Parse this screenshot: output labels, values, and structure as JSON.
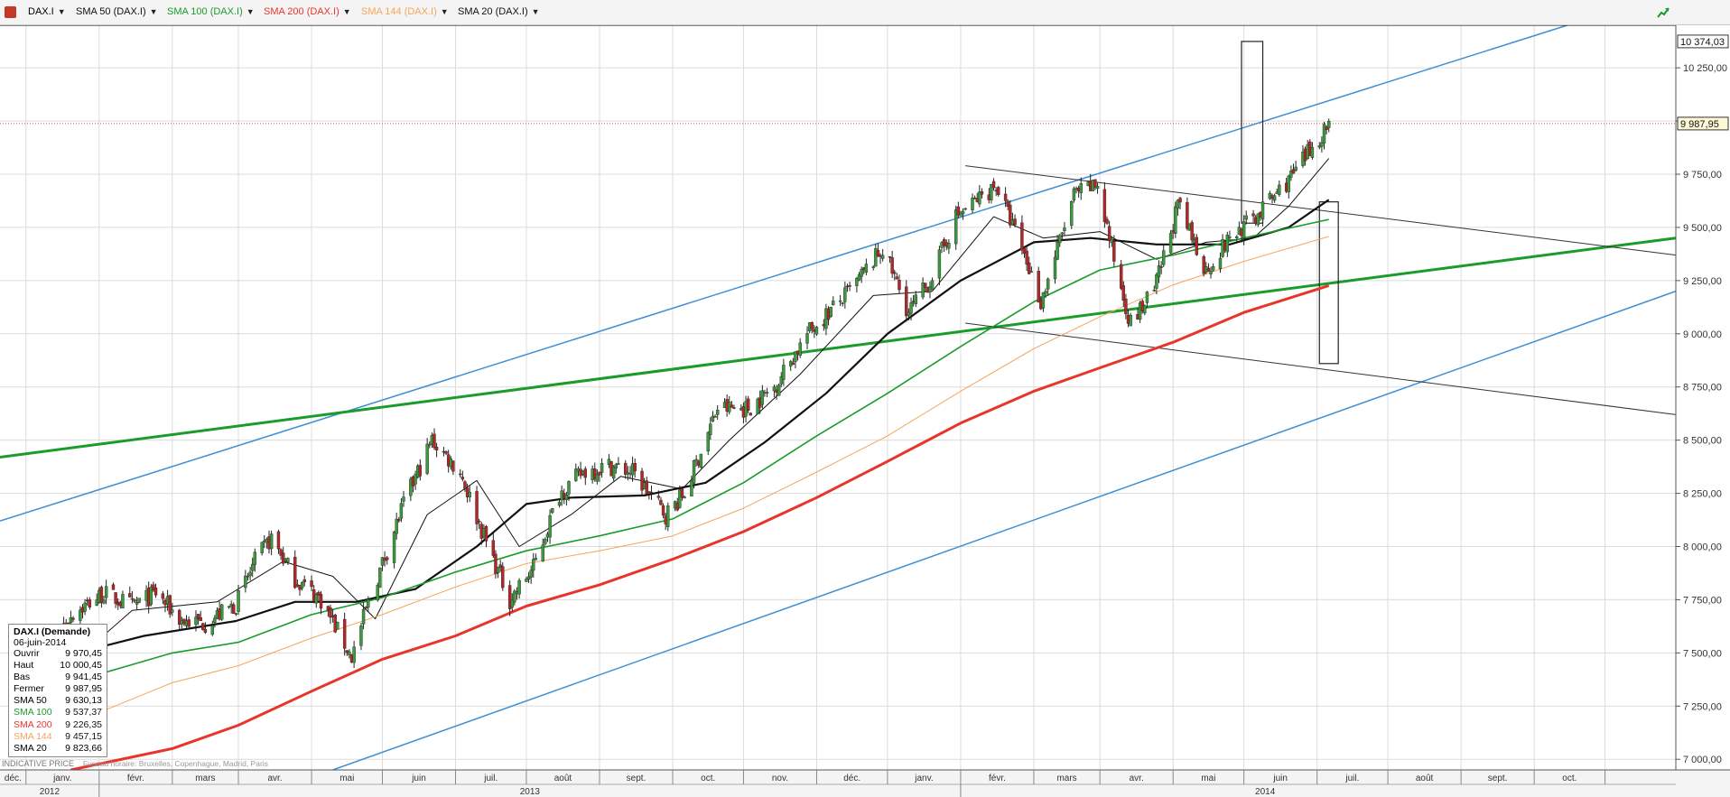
{
  "toolbar": {
    "instrument": "DAX.I",
    "overlays": [
      {
        "label": "SMA 50 (DAX.I)",
        "color": "#111111"
      },
      {
        "label": "SMA 100 (DAX.I)",
        "color": "#1a9b2a"
      },
      {
        "label": "SMA 200 (DAX.I)",
        "color": "#e8352b"
      },
      {
        "label": "SMA 144 (DAX.I)",
        "color": "#f5a55a"
      },
      {
        "label": "SMA 20 (DAX.I)",
        "color": "#111111"
      }
    ]
  },
  "info_box": {
    "title": "DAX.I (Demande)",
    "date": "06-juin-2014",
    "rows": [
      {
        "label": "Ouvrir",
        "value": "9 970,45",
        "color": "#111111"
      },
      {
        "label": "Haut",
        "value": "10 000,45",
        "color": "#111111"
      },
      {
        "label": "Bas",
        "value": "9 941,45",
        "color": "#111111"
      },
      {
        "label": "Fermer",
        "value": "9 987,95",
        "color": "#111111"
      },
      {
        "label": "SMA 50",
        "value": "9 630,13",
        "color": "#111111"
      },
      {
        "label": "SMA 100",
        "value": "9 537,37",
        "color": "#1a9b2a"
      },
      {
        "label": "SMA 200",
        "value": "9 226,35",
        "color": "#e8352b"
      },
      {
        "label": "SMA 144",
        "value": "9 457,15",
        "color": "#f5a55a"
      },
      {
        "label": "SMA 20",
        "value": "9 823,66",
        "color": "#111111"
      }
    ]
  },
  "footnote": {
    "price_type": "INDICATIVE PRICE",
    "timezone": "Fuseau horaire: Bruxelles, Copenhague, Madrid, Paris"
  },
  "chart_data": {
    "type": "candlestick",
    "ylim": [
      6950,
      10450
    ],
    "y_ticks": [
      7000,
      7250,
      7500,
      7750,
      8000,
      8250,
      8500,
      8750,
      9000,
      9250,
      9500,
      9750,
      10000,
      10250
    ],
    "y_tick_labels": [
      "7 000,00",
      "7 250,00",
      "7 500,00",
      "7 750,00",
      "8 000,00",
      "8 250,00",
      "8 500,00",
      "8 750,00",
      "9 000,00",
      "9 250,00",
      "9 500,00",
      "9 750,00",
      "10 000,00",
      "10 250,00"
    ],
    "x_months": [
      "déc.",
      "janv.",
      "févr.",
      "mars",
      "avr.",
      "mai",
      "juin",
      "juil.",
      "août",
      "sept.",
      "oct.",
      "nov.",
      "déc.",
      "janv.",
      "févr.",
      "mars",
      "avr.",
      "mai",
      "juin",
      "juil.",
      "août",
      "sept.",
      "oct."
    ],
    "x_years": [
      "2012",
      "2013",
      "2014"
    ],
    "x_range": [
      "2012-11-20",
      "2014-10-31"
    ],
    "last_price_label": "9 987,95",
    "last_price": 9987.95,
    "max_marker_label": "10 374,03",
    "max_marker": 10374.03,
    "price_path": [
      [
        "2012-12-03",
        7420
      ],
      [
        "2012-12-20",
        7680
      ],
      [
        "2013-01-03",
        7780
      ],
      [
        "2013-01-15",
        7720
      ],
      [
        "2013-01-25",
        7780
      ],
      [
        "2013-02-05",
        7650
      ],
      [
        "2013-02-15",
        7640
      ],
      [
        "2013-02-28",
        7730
      ],
      [
        "2013-03-08",
        7930
      ],
      [
        "2013-03-15",
        8040
      ],
      [
        "2013-03-25",
        7850
      ],
      [
        "2013-04-05",
        7750
      ],
      [
        "2013-04-18",
        7480
      ],
      [
        "2013-04-24",
        7700
      ],
      [
        "2013-05-02",
        7950
      ],
      [
        "2013-05-10",
        8200
      ],
      [
        "2013-05-22",
        8500
      ],
      [
        "2013-06-03",
        8350
      ],
      [
        "2013-06-13",
        8050
      ],
      [
        "2013-06-24",
        7750
      ],
      [
        "2013-07-04",
        7900
      ],
      [
        "2013-07-15",
        8250
      ],
      [
        "2013-07-25",
        8350
      ],
      [
        "2013-08-05",
        8380
      ],
      [
        "2013-08-15",
        8350
      ],
      [
        "2013-08-29",
        8150
      ],
      [
        "2013-09-06",
        8250
      ],
      [
        "2013-09-20",
        8650
      ],
      [
        "2013-10-03",
        8650
      ],
      [
        "2013-10-14",
        8750
      ],
      [
        "2013-10-28",
        9000
      ],
      [
        "2013-11-15",
        9200
      ],
      [
        "2013-11-29",
        9400
      ],
      [
        "2013-12-10",
        9100
      ],
      [
        "2013-12-19",
        9250
      ],
      [
        "2013-12-30",
        9550
      ],
      [
        "2014-01-16",
        9700
      ],
      [
        "2014-01-27",
        9400
      ],
      [
        "2014-02-04",
        9150
      ],
      [
        "2014-02-18",
        9650
      ],
      [
        "2014-02-28",
        9700
      ],
      [
        "2014-03-07",
        9350
      ],
      [
        "2014-03-14",
        9050
      ],
      [
        "2014-03-24",
        9200
      ],
      [
        "2014-04-03",
        9600
      ],
      [
        "2014-04-15",
        9300
      ],
      [
        "2014-04-25",
        9450
      ],
      [
        "2014-05-06",
        9550
      ],
      [
        "2014-05-14",
        9650
      ],
      [
        "2014-05-22",
        9750
      ],
      [
        "2014-06-06",
        9987.95
      ]
    ],
    "series": [
      {
        "name": "SMA 20",
        "color": "#111111",
        "width": 1,
        "values": [
          [
            "2012-12-05",
            7300
          ],
          [
            "2013-01-15",
            7700
          ],
          [
            "2013-02-20",
            7740
          ],
          [
            "2013-03-20",
            7930
          ],
          [
            "2013-04-10",
            7860
          ],
          [
            "2013-04-28",
            7660
          ],
          [
            "2013-05-20",
            8150
          ],
          [
            "2013-06-10",
            8310
          ],
          [
            "2013-06-28",
            8000
          ],
          [
            "2013-07-20",
            8150
          ],
          [
            "2013-08-10",
            8330
          ],
          [
            "2013-09-05",
            8270
          ],
          [
            "2013-09-25",
            8500
          ],
          [
            "2013-10-25",
            8810
          ],
          [
            "2013-11-25",
            9180
          ],
          [
            "2013-12-20",
            9200
          ],
          [
            "2014-01-15",
            9550
          ],
          [
            "2014-02-05",
            9450
          ],
          [
            "2014-03-01",
            9480
          ],
          [
            "2014-03-25",
            9350
          ],
          [
            "2014-04-15",
            9430
          ],
          [
            "2014-05-05",
            9450
          ],
          [
            "2014-05-20",
            9600
          ],
          [
            "2014-06-06",
            9823.66
          ]
        ]
      },
      {
        "name": "SMA 50",
        "color": "#111111",
        "width": 2.2,
        "values": [
          [
            "2012-12-05",
            7450
          ],
          [
            "2013-01-20",
            7580
          ],
          [
            "2013-02-28",
            7650
          ],
          [
            "2013-03-25",
            7740
          ],
          [
            "2013-04-20",
            7740
          ],
          [
            "2013-05-15",
            7800
          ],
          [
            "2013-06-10",
            8000
          ],
          [
            "2013-07-01",
            8200
          ],
          [
            "2013-07-20",
            8230
          ],
          [
            "2013-08-20",
            8240
          ],
          [
            "2013-09-15",
            8300
          ],
          [
            "2013-10-10",
            8490
          ],
          [
            "2013-11-05",
            8720
          ],
          [
            "2013-12-01",
            9000
          ],
          [
            "2014-01-01",
            9250
          ],
          [
            "2014-02-01",
            9430
          ],
          [
            "2014-02-25",
            9450
          ],
          [
            "2014-03-25",
            9420
          ],
          [
            "2014-04-25",
            9420
          ],
          [
            "2014-05-20",
            9500
          ],
          [
            "2014-06-06",
            9630.13
          ]
        ]
      },
      {
        "name": "SMA 100",
        "color": "#1a9b2a",
        "width": 1.6,
        "values": [
          [
            "2012-12-05",
            7260
          ],
          [
            "2013-01-01",
            7400
          ],
          [
            "2013-02-01",
            7500
          ],
          [
            "2013-03-01",
            7550
          ],
          [
            "2013-04-01",
            7680
          ],
          [
            "2013-05-01",
            7760
          ],
          [
            "2013-06-01",
            7880
          ],
          [
            "2013-07-01",
            7980
          ],
          [
            "2013-08-01",
            8050
          ],
          [
            "2013-09-01",
            8130
          ],
          [
            "2013-10-01",
            8300
          ],
          [
            "2013-11-01",
            8520
          ],
          [
            "2013-12-01",
            8720
          ],
          [
            "2014-01-01",
            8940
          ],
          [
            "2014-02-01",
            9150
          ],
          [
            "2014-03-01",
            9300
          ],
          [
            "2014-04-01",
            9370
          ],
          [
            "2014-05-01",
            9450
          ],
          [
            "2014-06-06",
            9537.37
          ]
        ]
      },
      {
        "name": "SMA 144",
        "color": "#f5a55a",
        "width": 1,
        "values": [
          [
            "2012-12-05",
            7050
          ],
          [
            "2013-01-01",
            7220
          ],
          [
            "2013-02-01",
            7360
          ],
          [
            "2013-03-01",
            7440
          ],
          [
            "2013-04-01",
            7570
          ],
          [
            "2013-05-01",
            7680
          ],
          [
            "2013-06-01",
            7810
          ],
          [
            "2013-07-01",
            7920
          ],
          [
            "2013-08-01",
            7980
          ],
          [
            "2013-09-01",
            8050
          ],
          [
            "2013-10-01",
            8180
          ],
          [
            "2013-11-01",
            8350
          ],
          [
            "2013-12-01",
            8520
          ],
          [
            "2014-01-01",
            8730
          ],
          [
            "2014-02-01",
            8930
          ],
          [
            "2014-03-01",
            9080
          ],
          [
            "2014-04-01",
            9230
          ],
          [
            "2014-05-01",
            9340
          ],
          [
            "2014-06-06",
            9457.15
          ]
        ]
      },
      {
        "name": "SMA 200",
        "color": "#e8352b",
        "width": 3,
        "values": [
          [
            "2012-12-20",
            6950
          ],
          [
            "2013-02-01",
            7050
          ],
          [
            "2013-03-01",
            7160
          ],
          [
            "2013-04-01",
            7320
          ],
          [
            "2013-05-01",
            7470
          ],
          [
            "2013-06-01",
            7580
          ],
          [
            "2013-07-01",
            7720
          ],
          [
            "2013-08-01",
            7820
          ],
          [
            "2013-09-01",
            7940
          ],
          [
            "2013-10-01",
            8070
          ],
          [
            "2013-11-01",
            8230
          ],
          [
            "2013-12-01",
            8400
          ],
          [
            "2014-01-01",
            8580
          ],
          [
            "2014-02-01",
            8730
          ],
          [
            "2014-03-01",
            8840
          ],
          [
            "2014-04-01",
            8960
          ],
          [
            "2014-05-01",
            9100
          ],
          [
            "2014-06-06",
            9226.35
          ]
        ]
      }
    ],
    "trendlines": [
      {
        "name": "upper-channel",
        "color": "#3d8fd6",
        "width": 1.5,
        "from": [
          "2012-11-20",
          8120
        ],
        "to": [
          "2014-09-15",
          10450
        ]
      },
      {
        "name": "lower-channel",
        "color": "#3d8fd6",
        "width": 1.5,
        "from": [
          "2013-04-10",
          6950
        ],
        "to": [
          "2014-10-31",
          9200
        ]
      },
      {
        "name": "green-support",
        "color": "#1a9b2a",
        "width": 3,
        "from": [
          "2012-11-20",
          8420
        ],
        "to": [
          "2014-10-31",
          9450
        ]
      },
      {
        "name": "wedge-upper",
        "color": "#333333",
        "width": 1,
        "from": [
          "2014-01-03",
          9790
        ],
        "to": [
          "2014-10-31",
          9370
        ]
      },
      {
        "name": "wedge-lower",
        "color": "#333333",
        "width": 1,
        "from": [
          "2014-01-03",
          9050
        ],
        "to": [
          "2014-10-31",
          8620
        ]
      }
    ],
    "boxes": [
      {
        "name": "max-box",
        "from": [
          "2014-04-30",
          10374
        ],
        "to": [
          "2014-05-09",
          9520
        ]
      },
      {
        "name": "target-box",
        "from": [
          "2014-06-02",
          9620
        ],
        "to": [
          "2014-06-10",
          8860
        ]
      }
    ],
    "grid": true
  }
}
